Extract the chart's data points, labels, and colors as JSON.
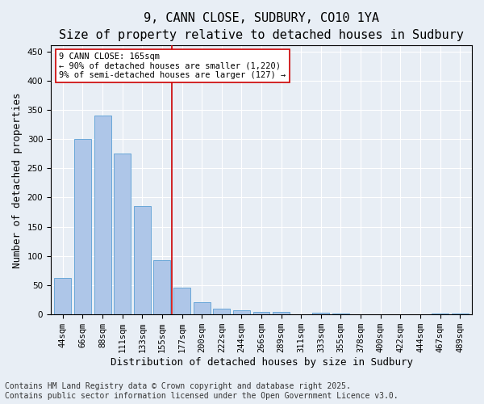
{
  "title": "9, CANN CLOSE, SUDBURY, CO10 1YA",
  "subtitle": "Size of property relative to detached houses in Sudbury",
  "xlabel": "Distribution of detached houses by size in Sudbury",
  "ylabel": "Number of detached properties",
  "categories": [
    "44sqm",
    "66sqm",
    "88sqm",
    "111sqm",
    "133sqm",
    "155sqm",
    "177sqm",
    "200sqm",
    "222sqm",
    "244sqm",
    "266sqm",
    "289sqm",
    "311sqm",
    "333sqm",
    "355sqm",
    "378sqm",
    "400sqm",
    "422sqm",
    "444sqm",
    "467sqm",
    "489sqm"
  ],
  "values": [
    63,
    300,
    340,
    275,
    185,
    93,
    46,
    21,
    10,
    7,
    5,
    4,
    0,
    3,
    2,
    0,
    0,
    0,
    0,
    1,
    1
  ],
  "bar_color": "#aec6e8",
  "bar_edge_color": "#5a9fd4",
  "vline_x": 5.5,
  "vline_color": "#cc0000",
  "annotation_text": "9 CANN CLOSE: 165sqm\n← 90% of detached houses are smaller (1,220)\n9% of semi-detached houses are larger (127) →",
  "annotation_box_color": "#ffffff",
  "annotation_box_edge": "#cc0000",
  "ylim": [
    0,
    460
  ],
  "yticks": [
    0,
    50,
    100,
    150,
    200,
    250,
    300,
    350,
    400,
    450
  ],
  "footer_line1": "Contains HM Land Registry data © Crown copyright and database right 2025.",
  "footer_line2": "Contains public sector information licensed under the Open Government Licence v3.0.",
  "bg_color": "#e8eef5",
  "plot_bg_color": "#e8eef5",
  "title_fontsize": 11,
  "subtitle_fontsize": 10,
  "label_fontsize": 9,
  "tick_fontsize": 7.5,
  "footer_fontsize": 7
}
